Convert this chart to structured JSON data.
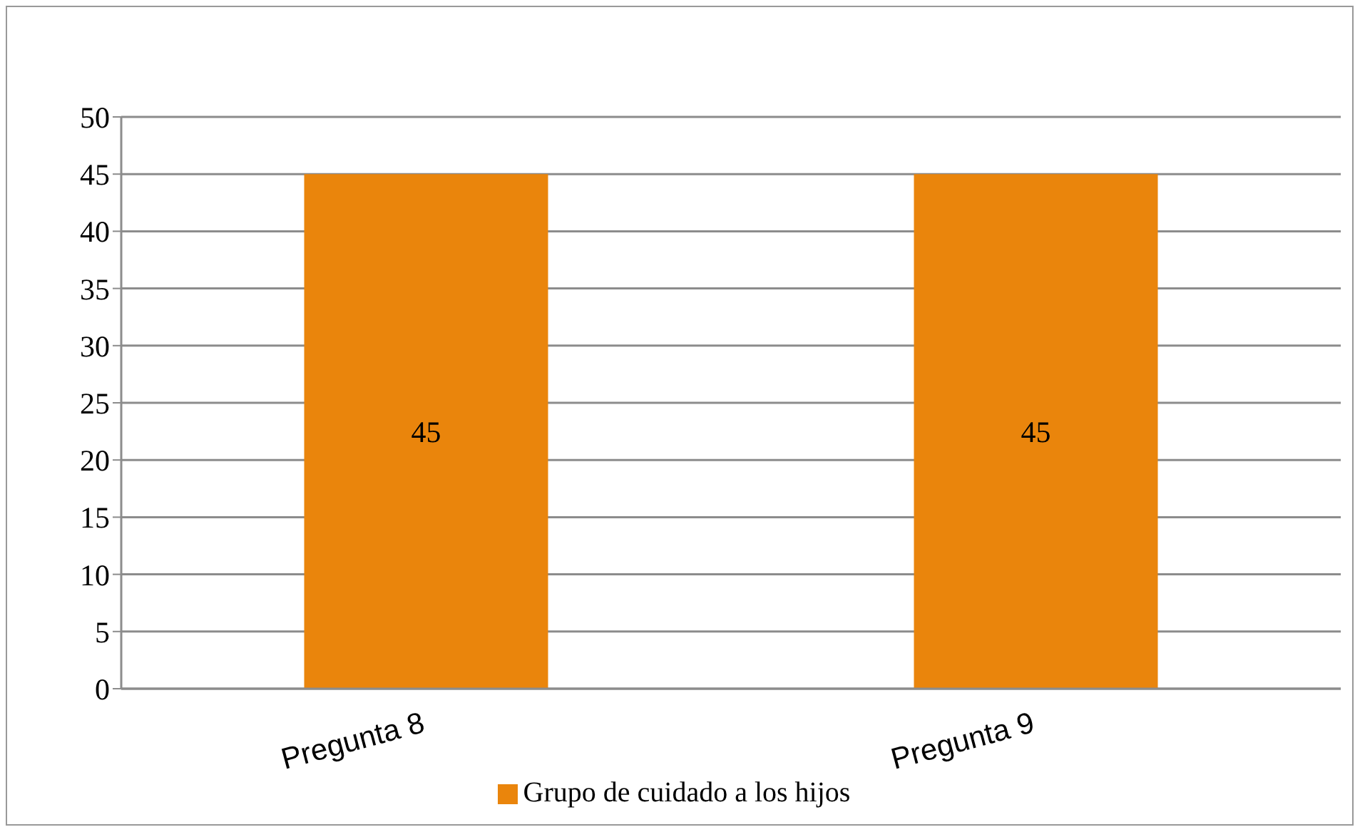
{
  "chart_data": {
    "type": "bar",
    "categories": [
      "Pregunta 8",
      "Pregunta 9"
    ],
    "series": [
      {
        "name": "Grupo de cuidado a los hijos",
        "color": "#ea850c",
        "values": [
          45,
          45
        ]
      }
    ],
    "ylim": [
      0,
      50
    ],
    "yticks": [
      0,
      5,
      10,
      15,
      20,
      25,
      30,
      35,
      40,
      45,
      50
    ],
    "grid": "y",
    "legend": "bottom",
    "data_labels": true
  }
}
